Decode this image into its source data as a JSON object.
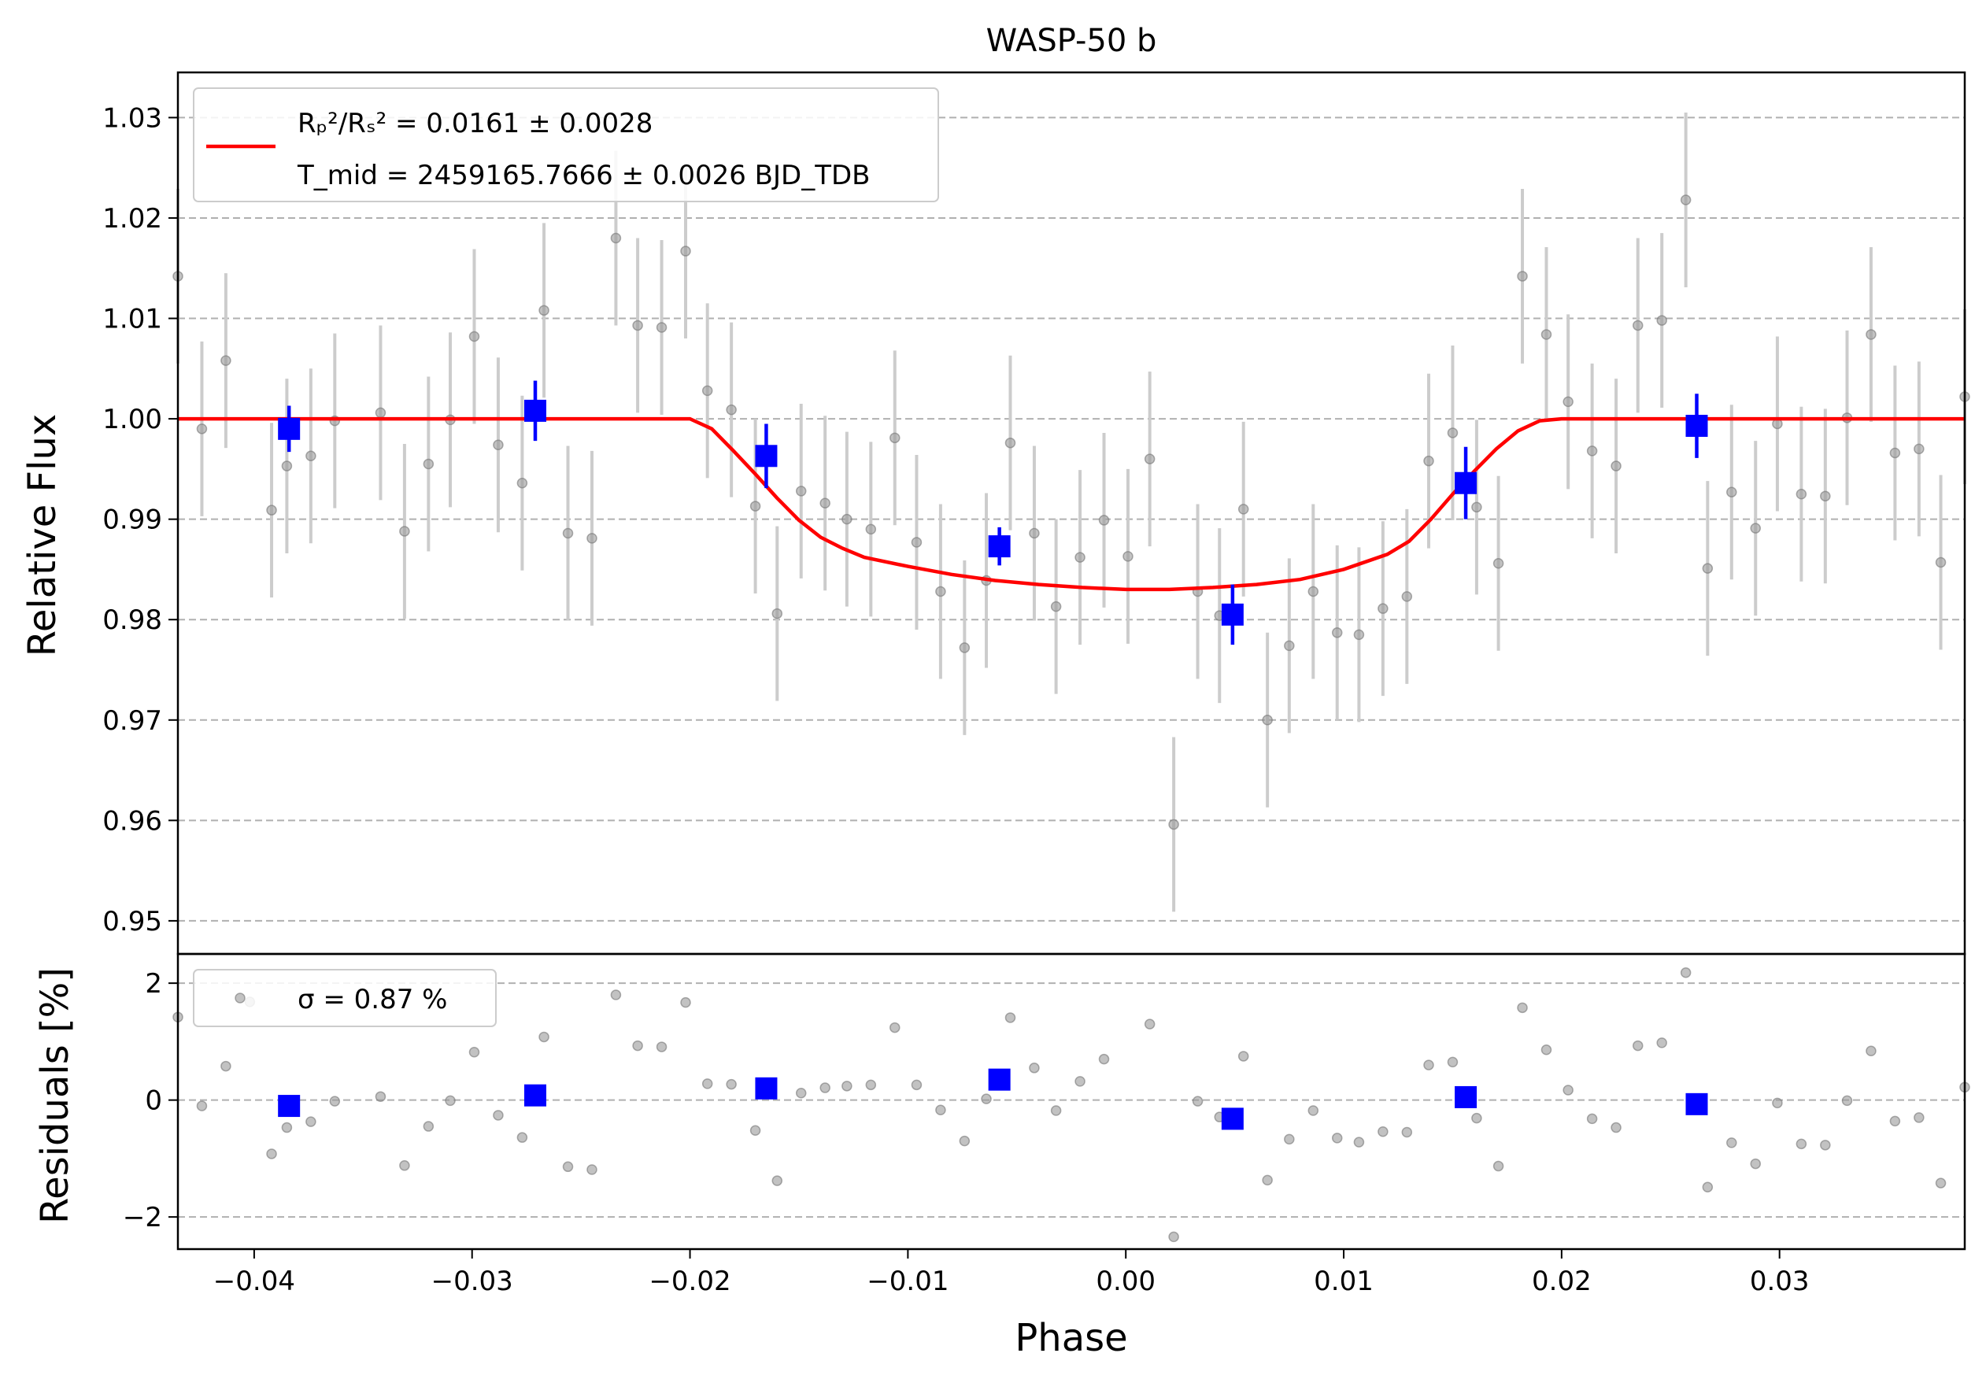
{
  "chart_data": [
    {
      "type": "scatter",
      "panel": "transit",
      "title": "WASP-50 b",
      "xlabel": "",
      "ylabel": "Relative Flux",
      "xlim": [
        -0.0435,
        0.0385
      ],
      "ylim": [
        0.9467,
        1.0345
      ],
      "yticks": [
        "0.95",
        "0.96",
        "0.97",
        "0.98",
        "0.99",
        "1.00",
        "1.01",
        "1.02",
        "1.03"
      ],
      "ytick_values": [
        0.95,
        0.96,
        0.97,
        0.98,
        0.99,
        1.0,
        1.01,
        1.02,
        1.03
      ],
      "grid": "y dashed",
      "legend_placement": "upper-left",
      "legend": {
        "line1": "Rₚ²/Rₛ² = 0.0161 ± 0.0028",
        "line2": "T_mid = 2459165.7666 ± 0.0026 BJD_TDB"
      },
      "series": [
        {
          "name": "",
          "kind": "points-with-errorbars",
          "color": "#999999",
          "x": [
            -0.0435,
            -0.0424,
            -0.0413,
            -0.0392,
            -0.0385,
            -0.0374,
            -0.0363,
            -0.0342,
            -0.0331,
            -0.032,
            -0.031,
            -0.0299,
            -0.0288,
            -0.0277,
            -0.0267,
            -0.0256,
            -0.0245,
            -0.0234,
            -0.0224,
            -0.0213,
            -0.0202,
            -0.0192,
            -0.0181,
            -0.017,
            -0.016,
            -0.0149,
            -0.0138,
            -0.0128,
            -0.0117,
            -0.0106,
            -0.0096,
            -0.0085,
            -0.0074,
            -0.0064,
            -0.0053,
            -0.0042,
            -0.0032,
            -0.0021,
            -0.001,
            0.0001,
            0.0011,
            0.0022,
            0.0033,
            0.0043,
            0.0054,
            0.0065,
            0.0075,
            0.0086,
            0.0097,
            0.0107,
            0.0118,
            0.0129,
            0.0139,
            0.015,
            0.0161,
            0.0171,
            0.0182,
            0.0193,
            0.0203,
            0.0214,
            0.0225,
            0.0235,
            0.0246,
            0.0257,
            0.0267,
            0.0278,
            0.0289,
            0.0299,
            0.031,
            0.0321,
            0.0331,
            0.0342,
            0.0353,
            0.0364,
            0.0374,
            0.0385
          ],
          "y": [
            1.0142,
            0.999,
            1.0058,
            0.9909,
            0.9953,
            0.9963,
            0.9998,
            1.0006,
            0.9888,
            0.9955,
            0.9999,
            1.0082,
            0.9974,
            0.9936,
            1.0108,
            0.9886,
            0.9881,
            1.018,
            1.0093,
            1.0091,
            1.0167,
            1.0028,
            1.0009,
            0.9913,
            0.9806,
            0.9928,
            0.9916,
            0.99,
            0.989,
            0.9981,
            0.9877,
            0.9828,
            0.9772,
            0.9839,
            0.9976,
            0.9886,
            0.9813,
            0.9862,
            0.9899,
            0.9863,
            0.996,
            0.9596,
            0.9828,
            0.9804,
            0.991,
            0.97,
            0.9774,
            0.9828,
            0.9787,
            0.9785,
            0.9811,
            0.9823,
            0.9958,
            0.9986,
            0.9912,
            0.9856,
            1.0142,
            1.0084,
            1.0017,
            0.9968,
            0.9953,
            1.0093,
            1.0098,
            1.0218,
            0.9851,
            0.9927,
            0.9891,
            0.9995,
            0.9925,
            0.9923,
            1.0001,
            1.0084,
            0.9966,
            0.997,
            0.9857,
            1.0022
          ],
          "yerr": 0.0087
        },
        {
          "name": "",
          "kind": "binned-points",
          "color": "#0000ff",
          "x": [
            -0.0384,
            -0.0271,
            -0.0165,
            -0.0058,
            0.0049,
            0.0156,
            0.0262
          ],
          "y": [
            0.999,
            1.0008,
            0.9963,
            0.9873,
            0.9805,
            0.9936,
            0.9993
          ],
          "yerr": [
            0.0023,
            0.003,
            0.0032,
            0.0019,
            0.003,
            0.0036,
            0.0032
          ]
        },
        {
          "name": "Rₚ²/Rₛ² = 0.0161 ± 0.0028",
          "kind": "model-line",
          "color": "#ff0000",
          "x": [
            -0.0435,
            -0.02,
            -0.019,
            -0.018,
            -0.017,
            -0.016,
            -0.015,
            -0.014,
            -0.013,
            -0.012,
            -0.01,
            -0.008,
            -0.006,
            -0.004,
            -0.002,
            0.0,
            0.002,
            0.004,
            0.006,
            0.008,
            0.01,
            0.012,
            0.013,
            0.014,
            0.015,
            0.016,
            0.017,
            0.018,
            0.019,
            0.02,
            0.0385
          ],
          "y": [
            1.0,
            1.0,
            0.999,
            0.9968,
            0.9945,
            0.9921,
            0.9899,
            0.9882,
            0.9871,
            0.9862,
            0.9853,
            0.9845,
            0.9839,
            0.9835,
            0.9832,
            0.983,
            0.983,
            0.9832,
            0.9835,
            0.984,
            0.985,
            0.9865,
            0.9878,
            0.99,
            0.9925,
            0.9948,
            0.997,
            0.9988,
            0.9998,
            1.0,
            1.0
          ]
        }
      ]
    },
    {
      "type": "scatter",
      "panel": "residuals",
      "xlabel": "Phase",
      "ylabel": "Residuals [%]",
      "xlim": [
        -0.0435,
        0.0385
      ],
      "ylim": [
        -2.55,
        2.5
      ],
      "xticks": [
        "−0.04",
        "−0.03",
        "−0.02",
        "−0.01",
        "0.00",
        "0.01",
        "0.02",
        "0.03"
      ],
      "xtick_values": [
        -0.04,
        -0.03,
        -0.02,
        -0.01,
        0.0,
        0.01,
        0.02,
        0.03
      ],
      "yticks": [
        "−2",
        "0",
        "2"
      ],
      "ytick_values": [
        -2,
        0,
        2
      ],
      "grid": "y dashed",
      "legend_placement": "upper-left",
      "legend": {
        "label": "σ = 0.87 %"
      },
      "series": [
        {
          "name": "σ = 0.87 %",
          "kind": "points",
          "color": "#999999",
          "x": [
            -0.0435,
            -0.0424,
            -0.0413,
            -0.0402,
            -0.0392,
            -0.0385,
            -0.0374,
            -0.0363,
            -0.0342,
            -0.0331,
            -0.032,
            -0.031,
            -0.0299,
            -0.0288,
            -0.0277,
            -0.0267,
            -0.0256,
            -0.0245,
            -0.0234,
            -0.0224,
            -0.0213,
            -0.0202,
            -0.0192,
            -0.0181,
            -0.017,
            -0.016,
            -0.0149,
            -0.0138,
            -0.0128,
            -0.0117,
            -0.0106,
            -0.0096,
            -0.0085,
            -0.0074,
            -0.0064,
            -0.0053,
            -0.0042,
            -0.0032,
            -0.0021,
            -0.001,
            0.0011,
            0.0022,
            0.0033,
            0.0043,
            0.0054,
            0.0065,
            0.0075,
            0.0086,
            0.0097,
            0.0107,
            0.0118,
            0.0129,
            0.0139,
            0.015,
            0.0161,
            0.0171,
            0.0182,
            0.0193,
            0.0203,
            0.0214,
            0.0225,
            0.0235,
            0.0246,
            0.0257,
            0.0267,
            0.0278,
            0.0289,
            0.0299,
            0.031,
            0.0321,
            0.0331,
            0.0342,
            0.0353,
            0.0364,
            0.0374,
            0.0385
          ],
          "y": [
            1.42,
            -0.1,
            0.58,
            1.68,
            -0.92,
            -0.47,
            -0.37,
            -0.02,
            0.06,
            -1.12,
            -0.45,
            -0.01,
            0.82,
            -0.26,
            -0.64,
            1.08,
            -1.14,
            -1.19,
            1.8,
            0.93,
            0.91,
            1.67,
            0.28,
            0.27,
            -0.52,
            -1.38,
            0.12,
            0.21,
            0.24,
            0.26,
            1.24,
            0.26,
            -0.17,
            -0.7,
            0.02,
            1.41,
            0.55,
            -0.18,
            0.32,
            0.7,
            1.3,
            -2.34,
            -0.02,
            -0.29,
            0.75,
            -1.37,
            -0.67,
            -0.18,
            -0.65,
            -0.72,
            -0.54,
            -0.55,
            0.6,
            0.65,
            -0.31,
            -1.13,
            1.58,
            0.86,
            0.17,
            -0.32,
            -0.47,
            0.93,
            0.98,
            2.18,
            -1.49,
            -0.73,
            -1.09,
            -0.05,
            -0.75,
            -0.77,
            -0.01,
            0.84,
            -0.36,
            -0.3,
            -1.42,
            0.22
          ]
        },
        {
          "name": "",
          "kind": "binned-points",
          "color": "#0000ff",
          "x": [
            -0.0384,
            -0.0271,
            -0.0165,
            -0.0058,
            0.0049,
            0.0156,
            0.0262
          ],
          "y": [
            -0.1,
            0.08,
            0.2,
            0.35,
            -0.32,
            0.05,
            -0.07
          ]
        }
      ]
    }
  ]
}
